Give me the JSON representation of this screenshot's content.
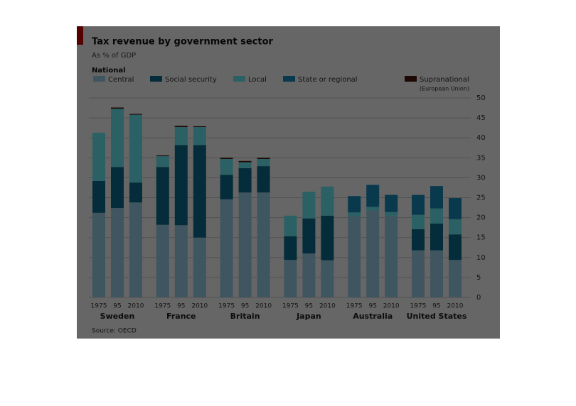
{
  "chart_data": {
    "type": "stacked_bar",
    "title": "Tax revenue by government sector",
    "subtitle": "As % of GDP",
    "legend_title": "National",
    "source": "Source: OECD",
    "groups": [
      "Sweden",
      "France",
      "Britain",
      "Japan",
      "Australia",
      "United States"
    ],
    "categories": [
      "1975",
      "95",
      "2010",
      "1975",
      "95",
      "2010",
      "1975",
      "95",
      "2010",
      "1975",
      "95",
      "2010",
      "1975",
      "95",
      "2010",
      "1975",
      "95",
      "2010"
    ],
    "series": [
      {
        "name": "Central",
        "color": "#9dd7f2",
        "values": [
          21.2,
          22.4,
          23.8,
          18.2,
          18.1,
          15.0,
          24.6,
          26.3,
          26.3,
          9.4,
          11.0,
          9.3,
          20.3,
          21.8,
          20.5,
          11.8,
          11.8,
          9.4
        ]
      },
      {
        "name": "Social security",
        "color": "#0b6f91",
        "values": [
          8.0,
          10.3,
          5.0,
          14.5,
          20.1,
          23.2,
          6.1,
          6.1,
          6.6,
          5.9,
          8.8,
          11.2,
          0,
          0,
          0,
          5.3,
          6.7,
          6.4
        ]
      },
      {
        "name": "Local",
        "color": "#6df2fb",
        "values": [
          12.1,
          14.6,
          17.0,
          2.7,
          4.5,
          4.5,
          4.0,
          1.5,
          1.8,
          5.2,
          6.7,
          7.3,
          1.0,
          0.9,
          0.9,
          3.6,
          3.8,
          3.8
        ]
      },
      {
        "name": "State or regional",
        "color": "#1690c0",
        "values": [
          0,
          0,
          0,
          0,
          0,
          0,
          0,
          0,
          0,
          0,
          0,
          0,
          4.1,
          5.5,
          4.3,
          5.0,
          5.6,
          5.3
        ]
      },
      {
        "name": "Supranational",
        "sublabel": "(European Union)",
        "color": "#4a1408",
        "values": [
          0,
          0.3,
          0.2,
          0.2,
          0.3,
          0.2,
          0.3,
          0.3,
          0.3,
          0,
          0,
          0,
          0,
          0,
          0,
          0,
          0,
          0
        ]
      }
    ],
    "ylim": [
      0,
      50
    ],
    "yticks": [
      0,
      5,
      10,
      15,
      20,
      25,
      30,
      35,
      40,
      45,
      50
    ],
    "grid": true,
    "axis_side": "right"
  }
}
